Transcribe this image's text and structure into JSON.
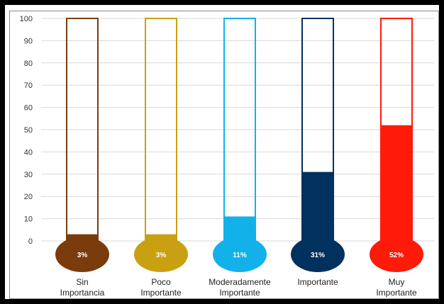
{
  "chart_data": {
    "type": "bar",
    "categories": [
      [
        "Sin",
        "Importancia"
      ],
      [
        "Poco",
        "Importante"
      ],
      [
        "Moderadamente",
        "Importante"
      ],
      [
        "Importante"
      ],
      [
        "Muy",
        "Importante"
      ]
    ],
    "values": [
      3,
      3,
      11,
      31,
      52
    ],
    "data_labels": [
      "3%",
      "3%",
      "11%",
      "31%",
      "52%"
    ],
    "colors": [
      "#7a3c0c",
      "#c9a012",
      "#12b1ea",
      "#00315f",
      "#ff1a0a"
    ],
    "ylim": [
      0,
      100
    ],
    "yticks": [
      "0",
      "10",
      "20",
      "30",
      "40",
      "50",
      "60",
      "70",
      "80",
      "90",
      "100"
    ],
    "grid": true,
    "title": "",
    "xlabel": "",
    "ylabel": ""
  }
}
